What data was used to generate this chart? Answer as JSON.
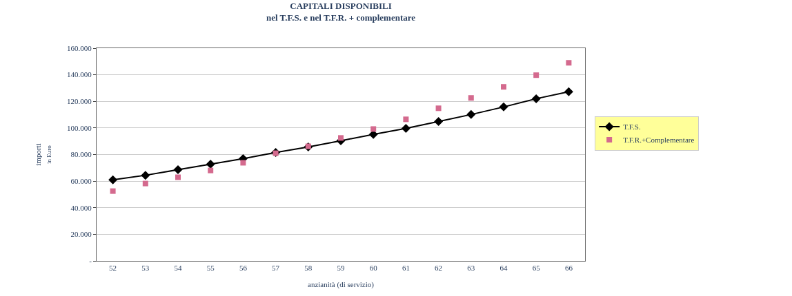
{
  "chart_data": {
    "type": "line",
    "title": "CAPITALI DISPONIBILI",
    "subtitle": "nel T.F.S. e nel T.F.R. + complementare",
    "xlabel": "anzianità (di servizio)",
    "ylabel": "importi",
    "annotations": [
      "in Euro"
    ],
    "categories": [
      "52",
      "53",
      "54",
      "55",
      "56",
      "57",
      "58",
      "59",
      "60",
      "61",
      "62",
      "63",
      "64",
      "65",
      "66"
    ],
    "series": [
      {
        "name": "T.F.S.",
        "color": "#000000",
        "marker": "diamond",
        "line_style": "solid",
        "values": [
          61000,
          64400,
          68600,
          72700,
          76900,
          81600,
          85700,
          90400,
          95100,
          99700,
          104900,
          110100,
          115800,
          122000,
          127300
        ]
      },
      {
        "name": "T.F.R.+Complementare",
        "color": "#d46a8e",
        "type": "scatter",
        "marker": "square",
        "values": [
          52500,
          58200,
          62900,
          68000,
          73800,
          81000,
          86200,
          92500,
          99200,
          106500,
          114800,
          122600,
          130900,
          139700,
          149000
        ]
      }
    ],
    "ylim": [
      0,
      160000
    ],
    "yticks": [
      {
        "value": 0,
        "label": "-"
      },
      {
        "value": 20000,
        "label": "20.000"
      },
      {
        "value": 40000,
        "label": "40.000"
      },
      {
        "value": 60000,
        "label": "60.000"
      },
      {
        "value": 80000,
        "label": "80.000"
      },
      {
        "value": 100000,
        "label": "100.000"
      },
      {
        "value": 120000,
        "label": "120.000"
      },
      {
        "value": 140000,
        "label": "140.000"
      },
      {
        "value": 160000,
        "label": "160.000"
      }
    ],
    "grid": "y",
    "legend": "right"
  }
}
